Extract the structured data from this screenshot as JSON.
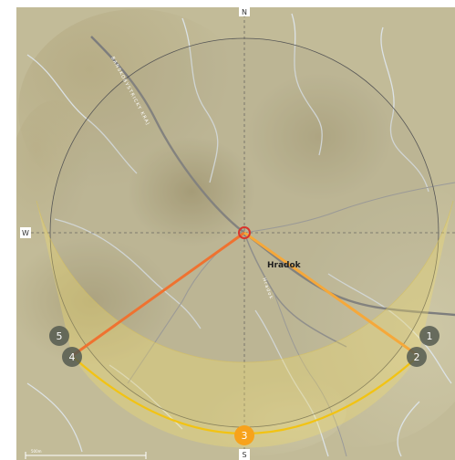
{
  "compass": {
    "n": "N",
    "s": "S",
    "w": "W"
  },
  "place": {
    "name": "Hradok"
  },
  "roads": {
    "main": "BANSKOBYSTRICKY KRAJ",
    "local": "Hradok"
  },
  "markers": [
    {
      "label": "1",
      "style": "inactive"
    },
    {
      "label": "2",
      "style": "inactive"
    },
    {
      "label": "3",
      "style": "active"
    },
    {
      "label": "4",
      "style": "inactive"
    },
    {
      "label": "5",
      "style": "inactive"
    }
  ],
  "scale": {
    "label": "500m"
  },
  "colors": {
    "sun_path": "#f2c313",
    "sun_area": "#f6e06a",
    "sunrise_line": "#f5a83a",
    "sunset_line": "#ef7230",
    "marker_active": "#f7a21c",
    "marker_inactive": "#555a50",
    "observer": "#d8342c"
  }
}
